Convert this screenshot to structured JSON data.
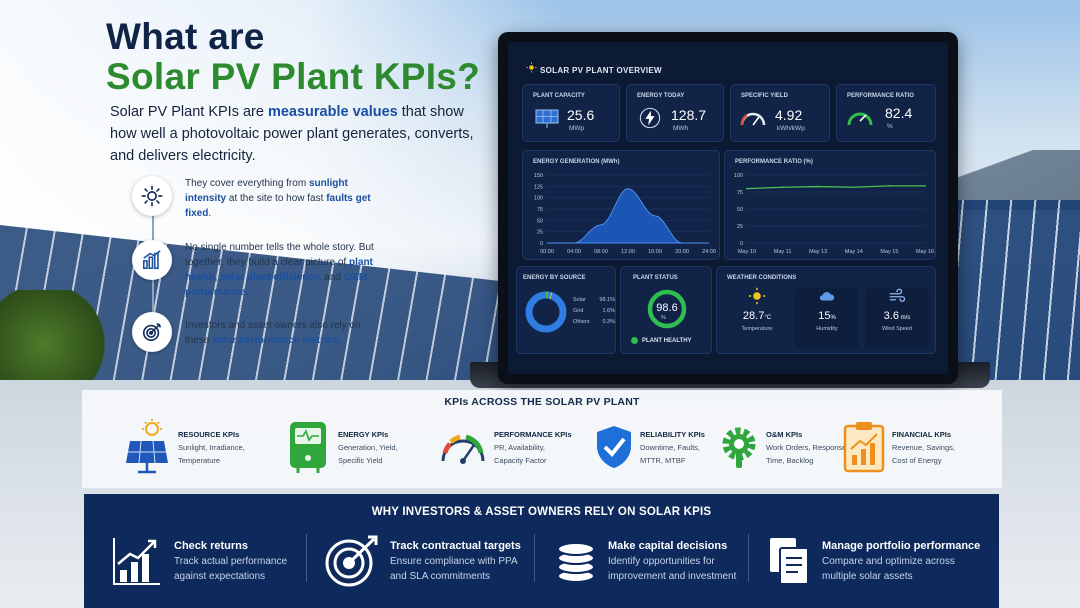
{
  "headline": {
    "line1": "What are",
    "line2": "Solar PV Plant KPIs?"
  },
  "intro": {
    "p1": "Solar PV Plant KPIs are ",
    "b1": "measurable values",
    "p2": " that show how well a photovoltaic power plant generates, converts, and delivers electricity."
  },
  "features": [
    {
      "icon": "sun-icon",
      "t1": "They cover everything from ",
      "b1": "sunlight intensity",
      "t2": " at the site to how fast ",
      "b2": "faults get fixed",
      "t3": "."
    },
    {
      "icon": "bar-chart-icon",
      "t1": "No single number tells the whole story. But together, they build a clear picture of ",
      "b1": "plant health, solar plant efficiency,",
      "t2": " and ",
      "b2": "O&M performance",
      "t3": "."
    },
    {
      "icon": "target-icon",
      "t1": "Investors and asset owners also rely on these ",
      "b1": "solar performance metrics",
      "t2": ".",
      "b2": "",
      "t3": ""
    }
  ],
  "dashboard": {
    "title": "SOLAR PV PLANT OVERVIEW",
    "kpis": [
      {
        "label": "PLANT CAPACITY",
        "value": "25.6",
        "unit": "MWp",
        "icon": "solar-panel-icon"
      },
      {
        "label": "ENERGY TODAY",
        "value": "128.7",
        "unit": "MWh",
        "icon": "bolt-icon"
      },
      {
        "label": "SPECIFIC YIELD",
        "value": "4.92",
        "unit": "kWh/kWp",
        "icon": "gauge-icon"
      },
      {
        "label": "PERFORMANCE RATIO",
        "value": "82.4",
        "unit": "%",
        "icon": "gauge-icon"
      }
    ],
    "energy_chart": {
      "title": "ENERGY GENERATION (MWh)",
      "yticks": [
        "150",
        "125",
        "100",
        "75",
        "50",
        "25",
        "0"
      ],
      "xticks": [
        "00:00",
        "04:00",
        "08:00",
        "12:00",
        "16:00",
        "20:00",
        "24:00"
      ]
    },
    "pr_chart": {
      "title": "PERFORMANCE RATIO (%)",
      "yticks": [
        "100",
        "75",
        "50",
        "25",
        "0"
      ],
      "xticks": [
        "May 10",
        "May 11",
        "May 13",
        "May 14",
        "May 15",
        "May 16"
      ]
    },
    "source": {
      "title": "ENERGY BY SOURCE",
      "items": [
        {
          "name": "Solar",
          "pct": "98.1%",
          "color": "#2f7de0"
        },
        {
          "name": "Grid",
          "pct": "1.6%",
          "color": "#3fbf4a"
        },
        {
          "name": "Others",
          "pct": "0.3%",
          "color": "#f0c53a"
        }
      ]
    },
    "status": {
      "title": "PLANT STATUS",
      "value": "98.6",
      "unit": "%",
      "label": "PLANT HEALTHY"
    },
    "weather": {
      "title": "WEATHER CONDITIONS",
      "items": [
        {
          "icon": "sun-icon",
          "value": "28.7",
          "unit": "°C",
          "label": "Temperature"
        },
        {
          "icon": "cloud-icon",
          "value": "15",
          "unit": "%",
          "label": "Humidity"
        },
        {
          "icon": "wind-icon",
          "value": "3.6",
          "unit": " m/s",
          "label": "Wind Speed"
        }
      ]
    }
  },
  "kpi_band": {
    "title": "KPIs ACROSS THE SOLAR PV PLANT",
    "items": [
      {
        "icon": "solar-panel-icon",
        "title": "RESOURCE KPIs",
        "l1": "Sunlight, Irradiance,",
        "l2": "Temperature"
      },
      {
        "icon": "inverter-icon",
        "title": "ENERGY KPIs",
        "l1": "Generation, Yield,",
        "l2": "Specific Yield"
      },
      {
        "icon": "gauge-icon",
        "title": "PERFORMANCE KPIs",
        "l1": "PR, Availability,",
        "l2": "Capacity Factor"
      },
      {
        "icon": "shield-check-icon",
        "title": "RELIABILITY KPIs",
        "l1": "Downtime, Faults,",
        "l2": "MTTR, MTBF"
      },
      {
        "icon": "gear-wrench-icon",
        "title": "O&M KPIs",
        "l1": "Work Orders, Response",
        "l2": "Time, Backlog"
      },
      {
        "icon": "clipboard-chart-icon",
        "title": "FINANCIAL KPIs",
        "l1": "Revenue, Savings,",
        "l2": "Cost of Energy"
      }
    ]
  },
  "why": {
    "title": "WHY INVESTORS & ASSET OWNERS RELY ON SOLAR KPIS",
    "items": [
      {
        "icon": "growth-chart-icon",
        "title": "Check returns",
        "l1": "Track actual performance",
        "l2": "against expectations"
      },
      {
        "icon": "target-icon",
        "title": "Track contractual targets",
        "l1": "Ensure compliance with PPA",
        "l2": "and SLA commitments"
      },
      {
        "icon": "coins-icon",
        "title": "Make capital decisions",
        "l1": "Identify opportunities for",
        "l2": "improvement and investment"
      },
      {
        "icon": "documents-icon",
        "title": "Manage portfolio performance",
        "l1": "Compare and optimize across",
        "l2": "multiple solar assets"
      }
    ]
  },
  "chart_data": [
    {
      "type": "area",
      "title": "ENERGY GENERATION (MWh)",
      "x": [
        "00:00",
        "04:00",
        "08:00",
        "12:00",
        "16:00",
        "20:00",
        "24:00"
      ],
      "ylim": [
        0,
        150
      ],
      "series": [
        {
          "values": [
            0,
            0,
            40,
            120,
            60,
            0,
            0
          ]
        }
      ]
    },
    {
      "type": "line",
      "title": "PERFORMANCE RATIO (%)",
      "x": [
        "May 10",
        "May 11",
        "May 13",
        "May 14",
        "May 15",
        "May 16"
      ],
      "ylim": [
        0,
        100
      ],
      "series": [
        {
          "values": [
            80,
            82,
            83,
            82,
            84,
            84
          ]
        }
      ]
    }
  ]
}
